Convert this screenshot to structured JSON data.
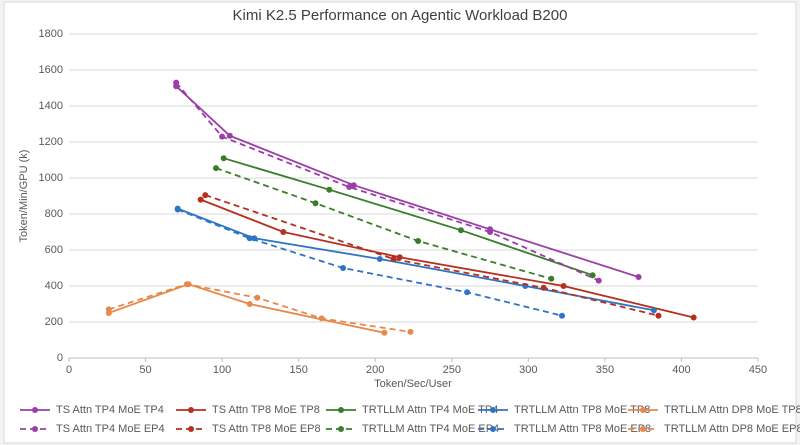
{
  "chart_data": {
    "type": "line",
    "title": "Kimi K2.5 Performance on Agentic Workload B200",
    "x_label": "Token/Sec/User",
    "y_label": "Token/Min/GPU (k)",
    "xlim": [
      0,
      450
    ],
    "xticks": [
      0,
      50,
      100,
      150,
      200,
      250,
      300,
      350,
      400,
      450
    ],
    "ylim": [
      0,
      1800
    ],
    "yticks": [
      0,
      200,
      400,
      600,
      800,
      1000,
      1200,
      1400,
      1600,
      1800
    ],
    "grid": true,
    "legend": "bottom",
    "series": [
      {
        "name": "TS Attn TP4 MoE TP4",
        "color": "#9b3ea8",
        "dashed": false,
        "x": [
          70,
          105,
          186,
          275,
          372
        ],
        "values": [
          1510,
          1235,
          960,
          715,
          450
        ]
      },
      {
        "name": "TS Attn TP8 MoE TP8",
        "color": "#b5301f",
        "dashed": false,
        "x": [
          86,
          140,
          216,
          323,
          408
        ],
        "values": [
          880,
          700,
          560,
          400,
          225
        ]
      },
      {
        "name": "TRTLLM Attn TP4 MoE TP4",
        "color": "#3b7d2a",
        "dashed": false,
        "x": [
          101,
          170,
          256,
          342
        ],
        "values": [
          1110,
          935,
          710,
          460
        ]
      },
      {
        "name": "TRTLLM Attn TP8 MoE TP8",
        "color": "#2f74c4",
        "dashed": false,
        "x": [
          71,
          121,
          203,
          298,
          382
        ],
        "values": [
          830,
          665,
          550,
          400,
          265
        ]
      },
      {
        "name": "TRTLLM Attn DP8 MoE TP8",
        "color": "#e8894a",
        "dashed": false,
        "x": [
          26,
          78,
          118,
          206
        ],
        "values": [
          250,
          410,
          300,
          140
        ]
      },
      {
        "name": "TS Attn TP4 MoE EP4",
        "color": "#9b3ea8",
        "dashed": true,
        "x": [
          70,
          100,
          183,
          275,
          346
        ],
        "values": [
          1530,
          1230,
          950,
          700,
          430
        ]
      },
      {
        "name": "TS Attn TP8 MoE EP8",
        "color": "#b5301f",
        "dashed": true,
        "x": [
          89,
          212,
          310,
          385
        ],
        "values": [
          905,
          550,
          390,
          235
        ]
      },
      {
        "name": "TRTLLM Attn TP4 MoE EP4",
        "color": "#3b7d2a",
        "dashed": true,
        "x": [
          96,
          161,
          228,
          315
        ],
        "values": [
          1055,
          860,
          650,
          440
        ]
      },
      {
        "name": "TRTLLM Attn TP8 MoE EP8",
        "color": "#2f74c4",
        "dashed": true,
        "x": [
          71,
          118,
          179,
          260,
          322
        ],
        "values": [
          825,
          665,
          500,
          365,
          235
        ]
      },
      {
        "name": "TRTLLM Attn DP8 MoE EP8",
        "color": "#e8894a",
        "dashed": true,
        "x": [
          26,
          77,
          123,
          165,
          223
        ],
        "values": [
          270,
          410,
          335,
          220,
          145
        ]
      }
    ]
  }
}
